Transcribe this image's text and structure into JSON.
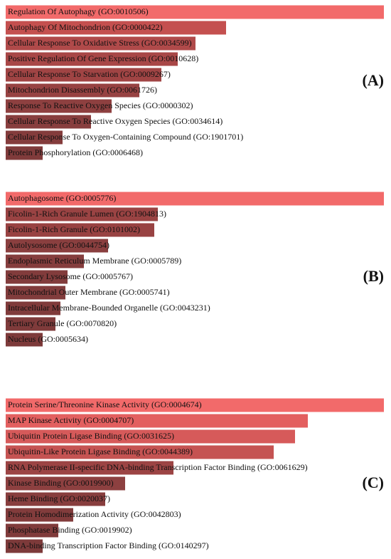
{
  "chart_data": [
    {
      "type": "bar",
      "panel_label": "(A)",
      "categories": [
        "Regulation Of Autophagy (GO:0010506)",
        "Autophagy Of Mitochondrion (GO:0000422)",
        "Cellular Response To Oxidative Stress (GO:0034599)",
        "Positive Regulation Of Gene Expression (GO:0010628)",
        "Cellular Response To Starvation (GO:0009267)",
        "Mitochondrion Disassembly (GO:0061726)",
        "Response To Reactive Oxygen Species (GO:0000302)",
        "Cellular Response To Reactive Oxygen Species (GO:0034614)",
        "Cellular Response To Oxygen-Containing Compound (GO:1901701)",
        "Protein Phosphorylation (GO:0006468)"
      ],
      "values": [
        532,
        310,
        267,
        242,
        219,
        188,
        149,
        120,
        80,
        52
      ],
      "colors": [
        "#f26a6a",
        "#c4504f",
        "#b04a4a",
        "#a84747",
        "#a04444",
        "#974242",
        "#8e4040",
        "#883e3e",
        "#843c3c",
        "#803b3b"
      ],
      "xlim": [
        0,
        532
      ]
    },
    {
      "type": "bar",
      "panel_label": "(B)",
      "categories": [
        "Autophagosome (GO:0005776)",
        "Ficolin-1-Rich Granule Lumen (GO:1904813)",
        "Ficolin-1-Rich Granule (GO:0101002)",
        "Autolysosome (GO:0044754)",
        "Endoplasmic Reticulum Membrane (GO:0005789)",
        "Secondary Lysosome (GO:0005767)",
        "Mitochondrial Outer Membrane (GO:0005741)",
        "Intracellular Membrane-Bounded Organelle (GO:0043231)",
        "Tertiary Granule (GO:0070820)",
        "Nucleus (GO:0005634)"
      ],
      "values": [
        532,
        214,
        209,
        144,
        110,
        87,
        84,
        77,
        70,
        52
      ],
      "colors": [
        "#f26a6a",
        "#9a4343",
        "#984242",
        "#8a3f3f",
        "#853d3d",
        "#823c3c",
        "#813c3c",
        "#803b3b",
        "#7f3b3b",
        "#7d3a3a"
      ],
      "xlim": [
        0,
        532
      ]
    },
    {
      "type": "bar",
      "panel_label": "(C)",
      "categories": [
        "Protein Serine/Threonine Kinase Activity (GO:0004674)",
        "MAP Kinase Activity (GO:0004707)",
        "Ubiquitin Protein Ligase Binding (GO:0031625)",
        "Ubiquitin-Like Protein Ligase Binding (GO:0044389)",
        "RNA Polymerase II-specific DNA-binding Transcription Factor Binding (GO:0061629)",
        "Kinase Binding (GO:0019900)",
        "Heme Binding (GO:0020037)",
        "Protein Homodimerization Activity (GO:0042803)",
        "Phosphatase Binding (GO:0019902)",
        "DNA-binding Transcription Factor Binding (GO:0140297)"
      ],
      "values": [
        532,
        425,
        407,
        377,
        236,
        168,
        140,
        95,
        74,
        52
      ],
      "colors": [
        "#f26a6a",
        "#e35f5f",
        "#d65a5a",
        "#c55352",
        "#9c4444",
        "#8d4040",
        "#883e3e",
        "#823c3c",
        "#803b3b",
        "#7d3a3a"
      ],
      "xlim": [
        0,
        532
      ]
    }
  ]
}
